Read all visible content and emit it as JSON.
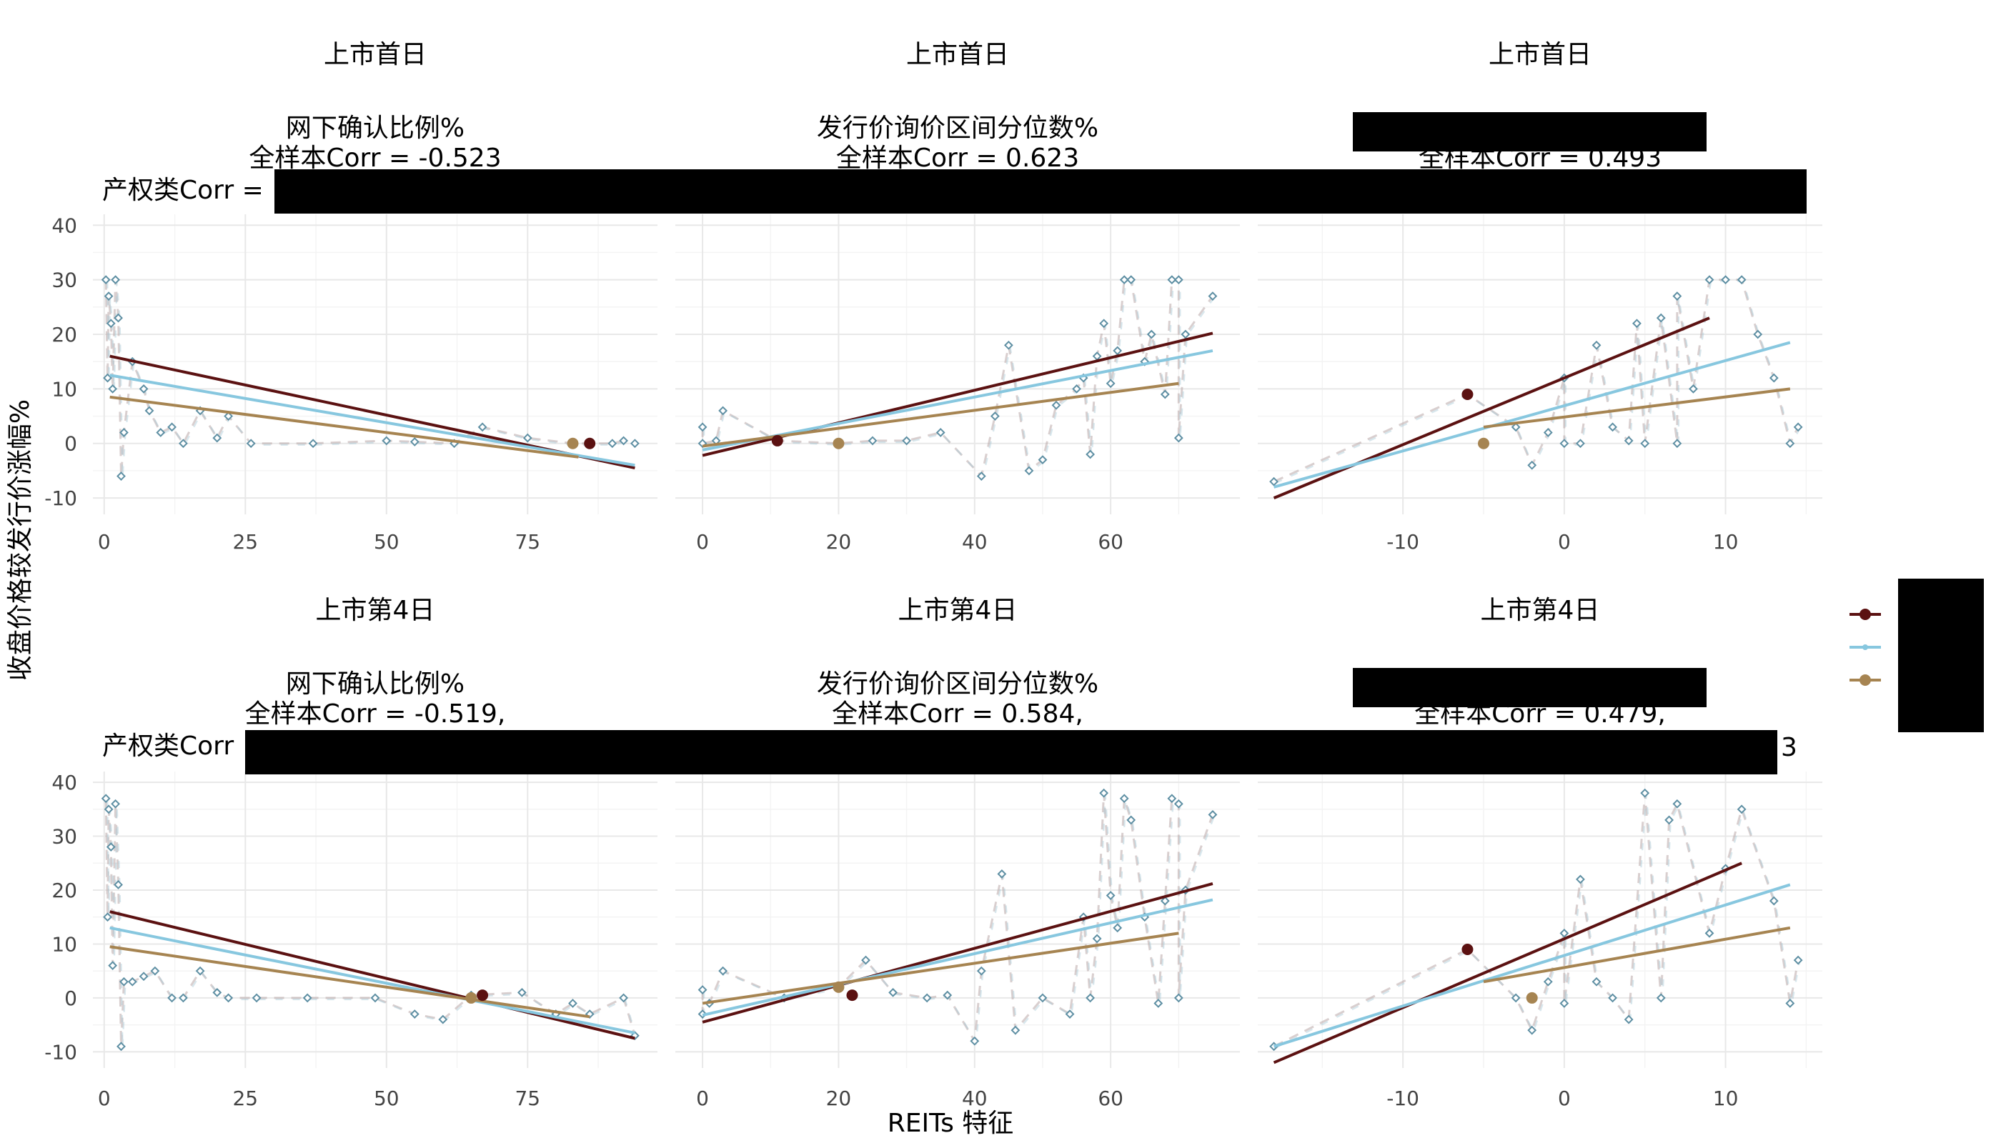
{
  "chart_data": {
    "type": "scatter",
    "x_axis_title": "REITs 特征",
    "y_axis_title": "收盘价格较发行价涨幅%",
    "legend": {
      "position": "right",
      "entries": [
        {
          "name": "",
          "color": "#5b1111"
        },
        {
          "name": "",
          "color": "#87c7df"
        },
        {
          "name": "",
          "color": "#a68451"
        }
      ]
    },
    "colors": {
      "dark": "#5b1111",
      "light_blue": "#87c7df",
      "gold": "#a68451",
      "redaction": "#000000"
    },
    "facets": [
      {
        "row_title": "上市首日",
        "feature": "网下确认比例%",
        "corr_text": "全样本Corr = -0.523",
        "left_text": "产权类Corr = ",
        "xlim": [
          -2,
          98
        ],
        "ylim": [
          -13,
          42
        ],
        "xticks": [
          0,
          25,
          50,
          75
        ],
        "yticks": [
          -10,
          0,
          10,
          20,
          30,
          40
        ],
        "points": [
          [
            0.3,
            30
          ],
          [
            0.6,
            12
          ],
          [
            0.8,
            27
          ],
          [
            1.2,
            22
          ],
          [
            1.5,
            10
          ],
          [
            2,
            30
          ],
          [
            2.5,
            23
          ],
          [
            3,
            -6
          ],
          [
            3.5,
            2
          ],
          [
            5,
            15
          ],
          [
            7,
            10
          ],
          [
            8,
            6
          ],
          [
            10,
            2
          ],
          [
            12,
            3
          ],
          [
            14,
            0
          ],
          [
            17,
            6
          ],
          [
            20,
            1
          ],
          [
            22,
            5
          ],
          [
            26,
            0
          ],
          [
            37,
            0
          ],
          [
            50,
            0.5
          ],
          [
            55,
            0.3
          ],
          [
            62,
            0
          ],
          [
            67,
            3
          ],
          [
            75,
            1
          ],
          [
            83,
            0
          ],
          [
            90,
            0
          ],
          [
            92,
            0.5
          ],
          [
            94,
            0
          ]
        ],
        "fit_lines": [
          {
            "series": 0,
            "x": [
              1,
              94
            ],
            "y": [
              16,
              -4.5
            ]
          },
          {
            "series": 1,
            "x": [
              1,
              94
            ],
            "y": [
              12.5,
              -4
            ]
          },
          {
            "series": 2,
            "x": [
              1,
              84
            ],
            "y": [
              8.5,
              -2.5
            ]
          }
        ],
        "highlights": [
          {
            "series": 0,
            "x": 86,
            "y": 0
          },
          {
            "series": 2,
            "x": 83,
            "y": 0
          }
        ]
      },
      {
        "row_title": "上市首日",
        "feature": "发行价询价区间分位数%",
        "corr_text": "全样本Corr = 0.623",
        "left_text": "",
        "xlim": [
          -4,
          79
        ],
        "ylim": [
          -13,
          42
        ],
        "xticks": [
          0,
          20,
          40,
          60
        ],
        "yticks": [
          -10,
          0,
          10,
          20,
          30,
          40
        ],
        "points": [
          [
            0,
            3
          ],
          [
            0,
            0
          ],
          [
            2,
            0.5
          ],
          [
            3,
            6
          ],
          [
            11,
            0.5
          ],
          [
            20,
            0
          ],
          [
            25,
            0.5
          ],
          [
            30,
            0.5
          ],
          [
            35,
            2
          ],
          [
            41,
            -6
          ],
          [
            43,
            5
          ],
          [
            45,
            18
          ],
          [
            48,
            -5
          ],
          [
            50,
            -3
          ],
          [
            52,
            7
          ],
          [
            55,
            10
          ],
          [
            56,
            12
          ],
          [
            57,
            -2
          ],
          [
            58,
            16
          ],
          [
            59,
            22
          ],
          [
            60,
            11
          ],
          [
            61,
            17
          ],
          [
            62,
            30
          ],
          [
            63,
            30
          ],
          [
            65,
            15
          ],
          [
            66,
            20
          ],
          [
            68,
            9
          ],
          [
            69,
            30
          ],
          [
            70,
            30
          ],
          [
            70,
            1
          ],
          [
            71,
            20
          ],
          [
            75,
            27
          ]
        ],
        "fit_lines": [
          {
            "series": 0,
            "x": [
              0,
              75
            ],
            "y": [
              -2.2,
              20.2
            ]
          },
          {
            "series": 1,
            "x": [
              0,
              75
            ],
            "y": [
              -1.2,
              17
            ]
          },
          {
            "series": 2,
            "x": [
              0,
              70
            ],
            "y": [
              -0.5,
              11
            ]
          }
        ],
        "highlights": [
          {
            "series": 0,
            "x": 11,
            "y": 0.5
          },
          {
            "series": 2,
            "x": 20,
            "y": 0
          }
        ]
      },
      {
        "row_title": "上市首日",
        "feature": "",
        "corr_text": "全样本Corr = 0.493",
        "left_text": "",
        "xlim": [
          -19,
          16
        ],
        "ylim": [
          -13,
          42
        ],
        "xticks": [
          -10,
          0,
          10
        ],
        "yticks": [
          -10,
          0,
          10,
          20,
          30,
          40
        ],
        "points": [
          [
            -18,
            -7
          ],
          [
            -6,
            9
          ],
          [
            -3,
            3
          ],
          [
            -2,
            -4
          ],
          [
            -1,
            2
          ],
          [
            0,
            12
          ],
          [
            0,
            0
          ],
          [
            1,
            0
          ],
          [
            2,
            18
          ],
          [
            3,
            3
          ],
          [
            4,
            0.5
          ],
          [
            4.5,
            22
          ],
          [
            5,
            0
          ],
          [
            6,
            23
          ],
          [
            7,
            0
          ],
          [
            7,
            27
          ],
          [
            8,
            10
          ],
          [
            9,
            30
          ],
          [
            10,
            30
          ],
          [
            11,
            30
          ],
          [
            12,
            20
          ],
          [
            13,
            12
          ],
          [
            14,
            0
          ],
          [
            14.5,
            3
          ]
        ],
        "fit_lines": [
          {
            "series": 0,
            "x": [
              -18,
              9
            ],
            "y": [
              -10,
              23
            ]
          },
          {
            "series": 1,
            "x": [
              -18,
              14
            ],
            "y": [
              -8,
              18.5
            ]
          },
          {
            "series": 2,
            "x": [
              -5,
              14
            ],
            "y": [
              3,
              10
            ]
          }
        ],
        "highlights": [
          {
            "series": 0,
            "x": -6,
            "y": 9
          },
          {
            "series": 2,
            "x": -5,
            "y": 0
          }
        ]
      },
      {
        "row_title": "上市第4日",
        "feature": "网下确认比例%",
        "corr_text": "全样本Corr = -0.519,",
        "left_text": "产权类Corr",
        "xlim": [
          -2,
          98
        ],
        "ylim": [
          -13,
          42
        ],
        "xticks": [
          0,
          25,
          50,
          75
        ],
        "yticks": [
          -10,
          0,
          10,
          20,
          30,
          40
        ],
        "points": [
          [
            0.3,
            37
          ],
          [
            0.6,
            15
          ],
          [
            0.8,
            35
          ],
          [
            1.2,
            28
          ],
          [
            1.5,
            6
          ],
          [
            2,
            36
          ],
          [
            2.5,
            21
          ],
          [
            3,
            -9
          ],
          [
            3.5,
            3
          ],
          [
            5,
            3
          ],
          [
            7,
            4
          ],
          [
            9,
            5
          ],
          [
            12,
            0
          ],
          [
            14,
            0
          ],
          [
            17,
            5
          ],
          [
            20,
            1
          ],
          [
            22,
            0
          ],
          [
            27,
            0
          ],
          [
            36,
            0
          ],
          [
            48,
            0
          ],
          [
            55,
            -3
          ],
          [
            60,
            -4
          ],
          [
            65,
            0.5
          ],
          [
            74,
            1
          ],
          [
            80,
            -3
          ],
          [
            83,
            -1
          ],
          [
            86,
            -3
          ],
          [
            92,
            0
          ],
          [
            94,
            -7
          ]
        ],
        "fit_lines": [
          {
            "series": 0,
            "x": [
              1,
              94
            ],
            "y": [
              16,
              -7.5
            ]
          },
          {
            "series": 1,
            "x": [
              1,
              94
            ],
            "y": [
              13,
              -6.5
            ]
          },
          {
            "series": 2,
            "x": [
              1,
              86
            ],
            "y": [
              9.5,
              -3.5
            ]
          }
        ],
        "highlights": [
          {
            "series": 0,
            "x": 67,
            "y": 0.5
          },
          {
            "series": 2,
            "x": 65,
            "y": 0
          }
        ]
      },
      {
        "row_title": "上市第4日",
        "feature": "发行价询价区间分位数%",
        "corr_text": "全样本Corr = 0.584,",
        "left_text": "",
        "xlim": [
          -4,
          79
        ],
        "ylim": [
          -13,
          42
        ],
        "xticks": [
          0,
          20,
          40,
          60
        ],
        "yticks": [
          -10,
          0,
          10,
          20,
          30,
          40
        ],
        "points": [
          [
            0,
            1.5
          ],
          [
            0,
            -3
          ],
          [
            1,
            -1
          ],
          [
            3,
            5
          ],
          [
            12,
            0
          ],
          [
            20,
            2
          ],
          [
            24,
            7
          ],
          [
            28,
            1
          ],
          [
            33,
            0
          ],
          [
            36,
            0.5
          ],
          [
            40,
            -8
          ],
          [
            41,
            5
          ],
          [
            44,
            23
          ],
          [
            46,
            -6
          ],
          [
            50,
            0
          ],
          [
            54,
            -3
          ],
          [
            56,
            15
          ],
          [
            57,
            0
          ],
          [
            58,
            11
          ],
          [
            59,
            38
          ],
          [
            60,
            19
          ],
          [
            61,
            13
          ],
          [
            62,
            37
          ],
          [
            63,
            33
          ],
          [
            65,
            15
          ],
          [
            67,
            -1
          ],
          [
            68,
            18
          ],
          [
            69,
            37
          ],
          [
            70,
            36
          ],
          [
            70,
            0
          ],
          [
            71,
            20
          ],
          [
            75,
            34
          ]
        ],
        "fit_lines": [
          {
            "series": 0,
            "x": [
              0,
              75
            ],
            "y": [
              -4.5,
              21.2
            ]
          },
          {
            "series": 1,
            "x": [
              0,
              75
            ],
            "y": [
              -3.2,
              18.2
            ]
          },
          {
            "series": 2,
            "x": [
              0,
              70
            ],
            "y": [
              -1,
              12
            ]
          }
        ],
        "highlights": [
          {
            "series": 0,
            "x": 22,
            "y": 0.5
          },
          {
            "series": 2,
            "x": 20,
            "y": 2
          }
        ]
      },
      {
        "row_title": "上市第4日",
        "feature": "",
        "corr_text": "全样本Corr = 0.479,",
        "left_text": "",
        "right_text": "3",
        "xlim": [
          -19,
          16
        ],
        "ylim": [
          -13,
          42
        ],
        "xticks": [
          -10,
          0,
          10
        ],
        "yticks": [
          -10,
          0,
          10,
          20,
          30,
          40
        ],
        "points": [
          [
            -18,
            -9
          ],
          [
            -6,
            9
          ],
          [
            -3,
            0
          ],
          [
            -2,
            -6
          ],
          [
            -1,
            3
          ],
          [
            0,
            12
          ],
          [
            0,
            -1
          ],
          [
            1,
            22
          ],
          [
            2,
            3
          ],
          [
            3,
            0
          ],
          [
            4,
            -4
          ],
          [
            5,
            38
          ],
          [
            6,
            0
          ],
          [
            6.5,
            33
          ],
          [
            7,
            36
          ],
          [
            9,
            12
          ],
          [
            10,
            24
          ],
          [
            11,
            35
          ],
          [
            13,
            18
          ],
          [
            14,
            -1
          ],
          [
            14.5,
            7
          ]
        ],
        "fit_lines": [
          {
            "series": 0,
            "x": [
              -18,
              11
            ],
            "y": [
              -12,
              25
            ]
          },
          {
            "series": 1,
            "x": [
              -18,
              14
            ],
            "y": [
              -9,
              21
            ]
          },
          {
            "series": 2,
            "x": [
              -5,
              14
            ],
            "y": [
              3,
              13
            ]
          }
        ],
        "highlights": [
          {
            "series": 0,
            "x": -6,
            "y": 9
          },
          {
            "series": 2,
            "x": -2,
            "y": 0
          }
        ]
      }
    ]
  }
}
